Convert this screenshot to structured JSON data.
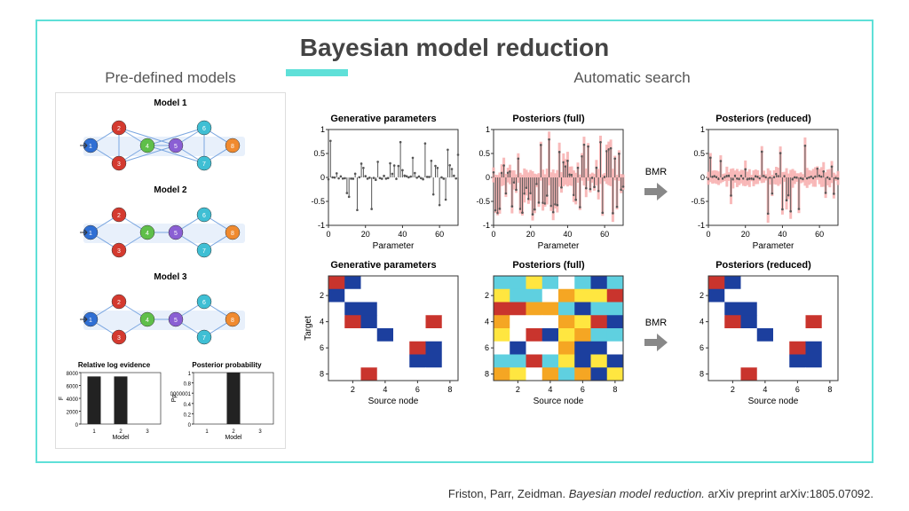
{
  "title": "Bayesian model reduction",
  "left": {
    "label": "Pre-defined models",
    "models": [
      {
        "title": "Model 1",
        "dense": true
      },
      {
        "title": "Model 2",
        "dense": false
      },
      {
        "title": "Model 3",
        "dense": false
      }
    ],
    "node_colors": [
      "#2f6fd4",
      "#d43a2f",
      "#d43a2f",
      "#5fbf4a",
      "#8a5fd4",
      "#3fbfd4",
      "#3fbfd4",
      "#f08a2f"
    ],
    "rle": {
      "title": "Relative log evidence",
      "ylabel": "F",
      "ymax": 8000,
      "ytick_step": 2000,
      "xticks": [
        1,
        2,
        3
      ],
      "xlabel": "Model",
      "values": [
        7400,
        7400,
        0
      ]
    },
    "pp": {
      "title": "Posterior probability",
      "ylabel": "Pp",
      "ymax": 1,
      "ytick_step": 0.2,
      "xticks": [
        1,
        2,
        3
      ],
      "xlabel": "Model",
      "values": [
        0,
        1,
        0
      ]
    }
  },
  "right": {
    "label": "Automatic search",
    "bmr_label": "BMR",
    "row1": {
      "titles": [
        "Generative parameters",
        "Posteriors (full)",
        "Posteriors (reduced)"
      ],
      "xlabel": "Parameter",
      "xlim": [
        0,
        70
      ],
      "xtick_step": 20,
      "ylim": [
        -1,
        1
      ],
      "ytick_step": 0.5,
      "n": 64,
      "gen_color": "#555555",
      "post_color": "#f7b3b3",
      "seed_gen": 7,
      "seed_full": 13,
      "seed_red": 19
    },
    "row2": {
      "titles": [
        "Generative parameters",
        "Posteriors (full)",
        "Posteriors (reduced)"
      ],
      "xlabel": "Source node",
      "ylabel": "Target",
      "ticks": [
        2,
        4,
        6,
        8
      ],
      "size": 8,
      "colors": {
        "pos": "#c9342d",
        "neg": "#1c3f9e",
        "zero": "#ffffff",
        "mid1": "#f5a623",
        "mid2": "#5fd0e0",
        "mid3": "#ffe640"
      },
      "seed_gen": 3,
      "seed_full": 11,
      "seed_red": 3
    }
  },
  "citation": {
    "authors": "Friston, Parr, Zeidman.",
    "title": "Bayesian model reduction.",
    "venue": "arXiv preprint arXiv:1805.07092."
  },
  "accent_color": "#5fe0d8"
}
